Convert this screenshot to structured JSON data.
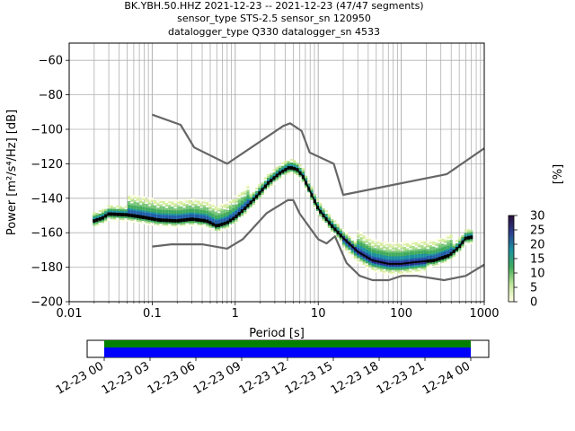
{
  "title_lines": [
    "BK.YBH.50.HHZ   2021-12-23 -- 2021-12-23  (47/47 segments)",
    "sensor_type STS-2.5 sensor_sn 120950",
    "datalogger_type Q330 datalogger_sn 4533"
  ],
  "chart_data": {
    "type": "heatmap",
    "xlabel": "Period [s]",
    "ylabel": "Power [m²/s⁴/Hz] [dB]",
    "xscale": "log",
    "xlim": [
      0.01,
      1000
    ],
    "ylim": [
      -200,
      -50
    ],
    "grid": true,
    "x_ticks": [
      {
        "value": 0.01,
        "label": "0.01"
      },
      {
        "value": 0.1,
        "label": "0.1"
      },
      {
        "value": 1,
        "label": "1"
      },
      {
        "value": 10,
        "label": "10"
      },
      {
        "value": 100,
        "label": "100"
      },
      {
        "value": 1000,
        "label": "1000"
      }
    ],
    "y_ticks": [
      {
        "value": -60,
        "label": "−60"
      },
      {
        "value": -80,
        "label": "−80"
      },
      {
        "value": -100,
        "label": "−100"
      },
      {
        "value": -120,
        "label": "−120"
      },
      {
        "value": -140,
        "label": "−140"
      },
      {
        "value": -160,
        "label": "−160"
      },
      {
        "value": -180,
        "label": "−180"
      },
      {
        "value": -200,
        "label": "−200"
      }
    ],
    "series": [
      {
        "role": "high-noise-model",
        "color": "#666666",
        "points": [
          [
            0.1,
            -91.5
          ],
          [
            0.22,
            -97.4
          ],
          [
            0.32,
            -110.5
          ],
          [
            0.8,
            -120
          ],
          [
            3.8,
            -98
          ],
          [
            4.6,
            -96.5
          ],
          [
            6.3,
            -101
          ],
          [
            7.9,
            -113.5
          ],
          [
            15.4,
            -120
          ],
          [
            20,
            -138
          ],
          [
            354.8,
            -126
          ],
          [
            1000,
            -111
          ]
        ]
      },
      {
        "role": "low-noise-model",
        "color": "#666666",
        "points": [
          [
            0.1,
            -168
          ],
          [
            0.17,
            -166.7
          ],
          [
            0.4,
            -166.7
          ],
          [
            0.8,
            -169.2
          ],
          [
            1.24,
            -163.7
          ],
          [
            2.4,
            -148.6
          ],
          [
            4.3,
            -141.1
          ],
          [
            5.0,
            -141.1
          ],
          [
            6.0,
            -149
          ],
          [
            10,
            -163.8
          ],
          [
            12.6,
            -166.2
          ],
          [
            15.9,
            -162.1
          ],
          [
            21.9,
            -177.5
          ],
          [
            31.6,
            -185
          ],
          [
            45,
            -187.5
          ],
          [
            70.8,
            -187.5
          ],
          [
            101,
            -185
          ],
          [
            154,
            -185
          ],
          [
            328,
            -187.5
          ],
          [
            600,
            -185
          ],
          [
            1000,
            -178.5
          ]
        ]
      },
      {
        "role": "mean",
        "color": "#000000",
        "points": [
          [
            0.02,
            -153
          ],
          [
            0.025,
            -151.5
          ],
          [
            0.03,
            -149
          ],
          [
            0.05,
            -149.5
          ],
          [
            0.08,
            -151
          ],
          [
            0.12,
            -152.5
          ],
          [
            0.2,
            -153
          ],
          [
            0.3,
            -152
          ],
          [
            0.45,
            -153
          ],
          [
            0.6,
            -156
          ],
          [
            0.8,
            -154
          ],
          [
            1.0,
            -151
          ],
          [
            1.3,
            -146
          ],
          [
            1.8,
            -139
          ],
          [
            2.5,
            -131
          ],
          [
            3.5,
            -125
          ],
          [
            4.5,
            -122
          ],
          [
            5.5,
            -123
          ],
          [
            6.5,
            -127
          ],
          [
            8,
            -136
          ],
          [
            10,
            -146
          ],
          [
            14,
            -155
          ],
          [
            20,
            -163
          ],
          [
            30,
            -171
          ],
          [
            45,
            -176
          ],
          [
            70,
            -178
          ],
          [
            100,
            -178
          ],
          [
            150,
            -177
          ],
          [
            250,
            -176
          ],
          [
            380,
            -173
          ],
          [
            500,
            -168
          ],
          [
            600,
            -163
          ],
          [
            700,
            -162.5
          ]
        ]
      }
    ],
    "colorbar": {
      "label": "[%]",
      "min": 0,
      "max": 30,
      "ticks": [
        {
          "value": 0,
          "label": "0"
        },
        {
          "value": 5,
          "label": "5"
        },
        {
          "value": 10,
          "label": "10"
        },
        {
          "value": 15,
          "label": "15"
        },
        {
          "value": 20,
          "label": "20"
        },
        {
          "value": 25,
          "label": "25"
        },
        {
          "value": 30,
          "label": "30"
        }
      ]
    },
    "timeline": {
      "ticks": [
        "12-23 00",
        "12-23 03",
        "12-23 06",
        "12-23 09",
        "12-23 12",
        "12-23 15",
        "12-23 18",
        "12-23 21",
        "12-24 00"
      ],
      "bands": [
        {
          "color": "#008000"
        },
        {
          "color": "#0000ff"
        }
      ]
    }
  }
}
